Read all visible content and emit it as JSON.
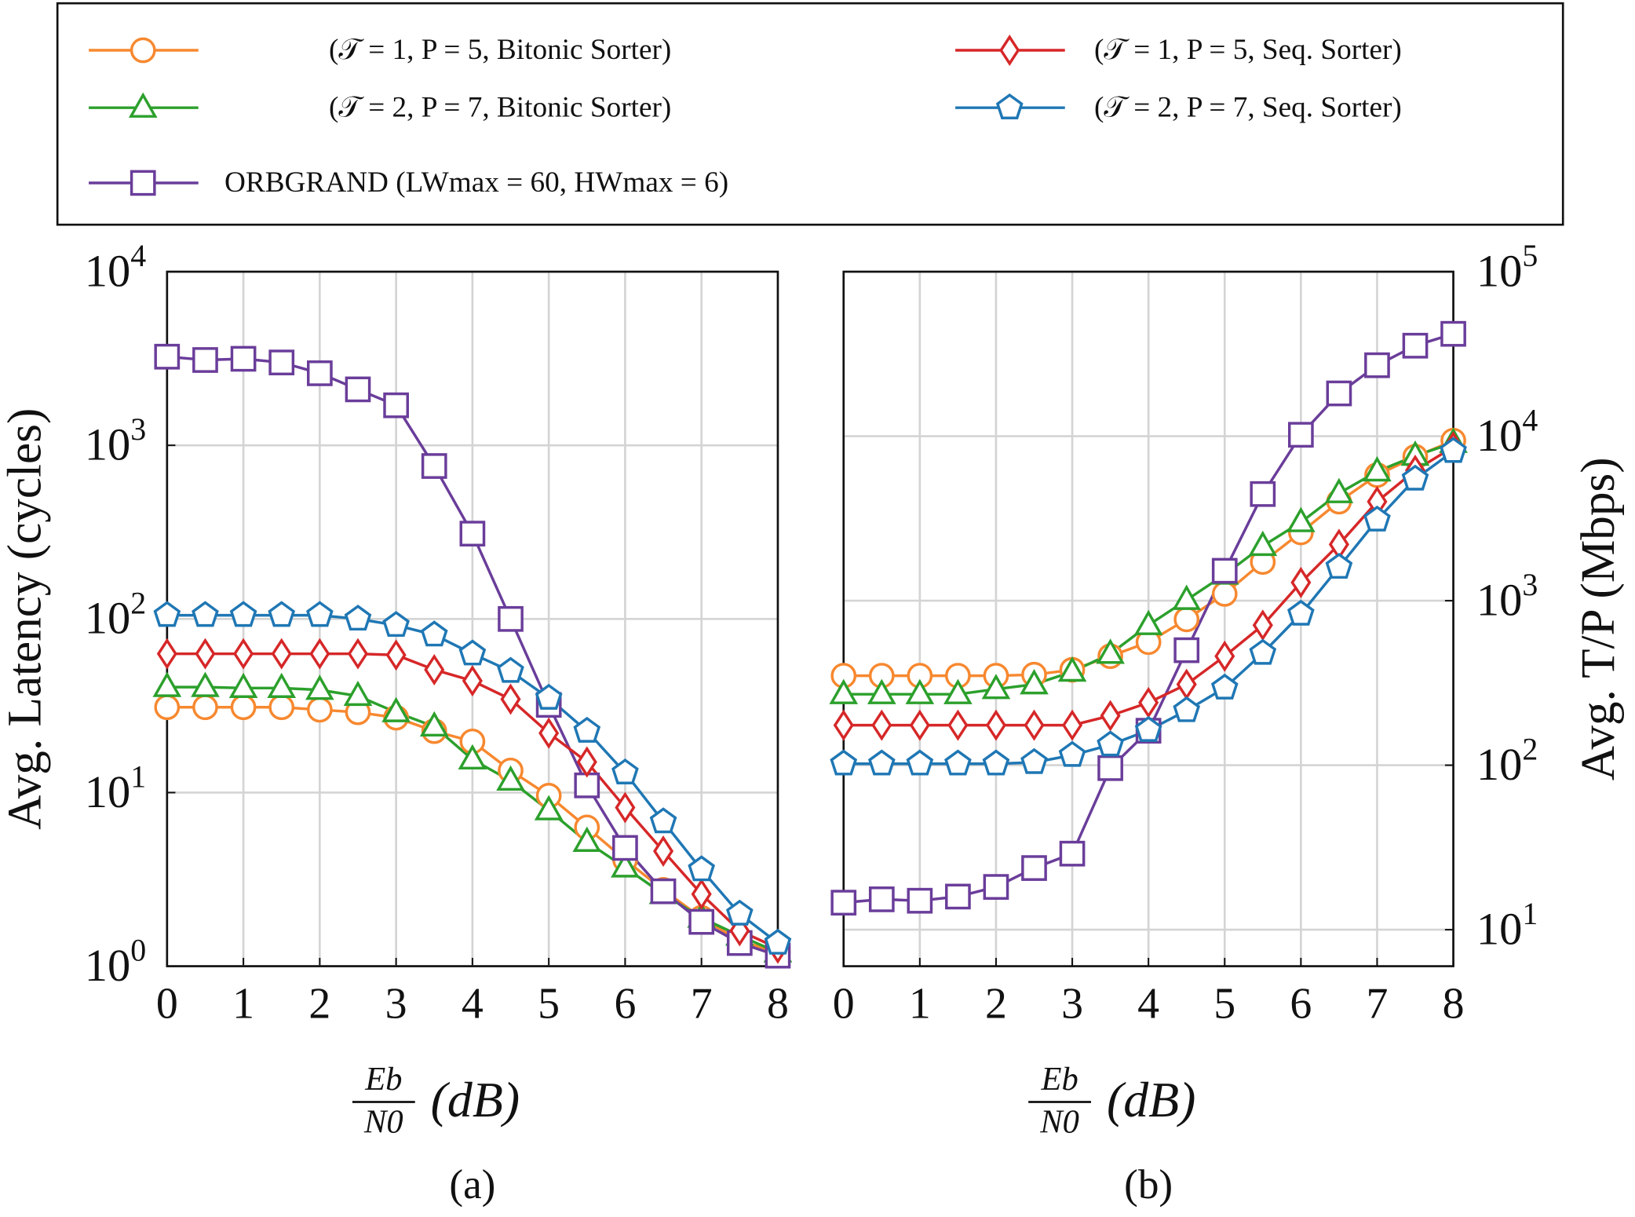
{
  "chart_data": [
    {
      "type": "line",
      "label": "(a)",
      "ylabel": "Avg. Latency (cycles)",
      "xlabel": {
        "numerator": "Eb",
        "denominator": "N0",
        "unit": "(dB)"
      },
      "log_y": true,
      "grid": true,
      "yaxis_side": "left",
      "x": [
        0,
        0.5,
        1,
        1.5,
        2,
        2.5,
        3,
        3.5,
        4,
        4.5,
        5,
        5.5,
        6,
        6.5,
        7,
        7.5,
        8
      ],
      "xlim": [
        0,
        8
      ],
      "xticks": [
        0,
        1,
        2,
        3,
        4,
        5,
        6,
        7,
        8
      ],
      "ylim": [
        1,
        10000
      ],
      "yticks": [
        {
          "value": 1,
          "label": "10^0"
        },
        {
          "value": 10,
          "label": "10^1"
        },
        {
          "value": 100,
          "label": "10^2"
        },
        {
          "value": 1000,
          "label": "10^3"
        },
        {
          "value": 10000,
          "label": "10^4"
        }
      ],
      "series": [
        {
          "name": "(𝒯 = 1, P = 5, Bitonic Sorter)",
          "color": "#f7882f",
          "marker": "circle",
          "values": [
            31,
            31,
            31,
            31,
            30,
            29,
            27,
            22.6,
            19.7,
            13.4,
            9.6,
            6.3,
            4.1,
            2.75,
            1.9,
            1.4,
            1.2
          ]
        },
        {
          "name": "(𝒯 = 2, P = 7, Bitonic Sorter)",
          "color": "#2ca02c",
          "marker": "triangle",
          "values": [
            40.5,
            40.5,
            40,
            40,
            39,
            36,
            29,
            24,
            15.5,
            11.7,
            7.9,
            5.2,
            3.7,
            2.6,
            1.9,
            1.5,
            1.2
          ]
        },
        {
          "name": "ORBGRAND (LWmax = 60, HWmax = 6)",
          "color": "#6a3d9a",
          "marker": "square",
          "values": [
            3240,
            3100,
            3150,
            3000,
            2600,
            2100,
            1700,
            760,
            310,
            100,
            32,
            11,
            4.8,
            2.7,
            1.8,
            1.36,
            1.15
          ]
        },
        {
          "name": "(𝒯 = 1, P = 5, Seq. Sorter)",
          "color": "#d62728",
          "marker": "diamond",
          "values": [
            63,
            63,
            63,
            63,
            63,
            63,
            62,
            51,
            44,
            34.5,
            22,
            15,
            8.2,
            4.6,
            2.6,
            1.6,
            1.27
          ]
        },
        {
          "name": "(𝒯 = 2, P = 7, Seq. Sorter)",
          "color": "#1f77b4",
          "marker": "pentagon",
          "values": [
            105,
            105,
            105,
            105,
            105,
            100,
            92,
            81,
            63,
            50,
            35,
            22.6,
            13,
            6.8,
            3.6,
            2.0,
            1.36
          ]
        }
      ]
    },
    {
      "type": "line",
      "label": "(b)",
      "ylabel": "Avg. T/P (Mbps)",
      "xlabel": {
        "numerator": "Eb",
        "denominator": "N0",
        "unit": "(dB)"
      },
      "log_y": true,
      "grid": true,
      "yaxis_side": "right",
      "x": [
        0,
        0.5,
        1,
        1.5,
        2,
        2.5,
        3,
        3.5,
        4,
        4.5,
        5,
        5.5,
        6,
        6.5,
        7,
        7.5,
        8
      ],
      "xlim": [
        0,
        8
      ],
      "xticks": [
        0,
        1,
        2,
        3,
        4,
        5,
        6,
        7,
        8
      ],
      "ylim": [
        6,
        100000
      ],
      "yticks": [
        {
          "value": 10,
          "label": "10^1"
        },
        {
          "value": 100,
          "label": "10^2"
        },
        {
          "value": 1000,
          "label": "10^3"
        },
        {
          "value": 10000,
          "label": "10^4"
        },
        {
          "value": 100000,
          "label": "10^5"
        }
      ],
      "series": [
        {
          "color": "#f7882f",
          "marker": "circle",
          "values": [
            350,
            350,
            350,
            350,
            350,
            355,
            380,
            460,
            560,
            770,
            1100,
            1720,
            2600,
            4000,
            5800,
            7500,
            9400
          ]
        },
        {
          "color": "#2ca02c",
          "marker": "triangle",
          "values": [
            270,
            270,
            270,
            270,
            290,
            310,
            370,
            475,
            710,
            1010,
            1440,
            2150,
            3000,
            4500,
            6100,
            7600,
            9100
          ]
        },
        {
          "color": "#6a3d9a",
          "marker": "square",
          "values": [
            14.6,
            15.3,
            15.0,
            15.9,
            18.2,
            23.7,
            29,
            96,
            162,
            500,
            1520,
            4450,
            10200,
            18200,
            27000,
            35500,
            41900
          ]
        },
        {
          "color": "#d62728",
          "marker": "diamond",
          "values": [
            175,
            175,
            175,
            175,
            175,
            175,
            175,
            200,
            240,
            310,
            460,
            710,
            1290,
            2200,
            4000,
            6200,
            8600
          ]
        },
        {
          "color": "#1f77b4",
          "marker": "pentagon",
          "values": [
            102,
            102,
            102,
            102,
            102,
            104,
            115,
            133,
            163,
            215,
            295,
            480,
            830,
            1600,
            3100,
            5500,
            8100
          ]
        }
      ]
    }
  ]
}
